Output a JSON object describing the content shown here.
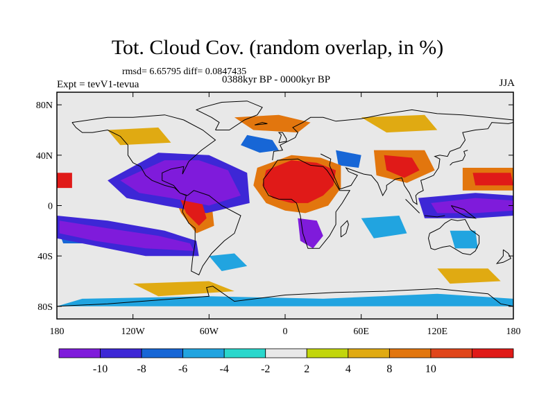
{
  "title": "Tot. Cloud Cov. (random overlap, in %)",
  "stats_line": "rmsd= 6.65795 diff= 0.0847435",
  "experiment": "Expt = tevV1-tevua",
  "period": "0388kyr BP - 0000kyr BP",
  "season": "JJA",
  "map": {
    "lon_range": [
      -180,
      180
    ],
    "lat_range": [
      -90,
      90
    ],
    "lon_ticks": [
      {
        "value": -180,
        "label": "180"
      },
      {
        "value": -120,
        "label": "120W"
      },
      {
        "value": -60,
        "label": "60W"
      },
      {
        "value": 0,
        "label": "0"
      },
      {
        "value": 60,
        "label": "60E"
      },
      {
        "value": 120,
        "label": "120E"
      },
      {
        "value": 180,
        "label": "180"
      }
    ],
    "lat_ticks": [
      {
        "value": 80,
        "label": "80N"
      },
      {
        "value": 40,
        "label": "40N"
      },
      {
        "value": 0,
        "label": "0"
      },
      {
        "value": -40,
        "label": "40S"
      },
      {
        "value": -80,
        "label": "80S"
      }
    ],
    "background_color": "#e8e8e8"
  },
  "colorbar": {
    "colors": [
      "#7f1bdb",
      "#3d27d6",
      "#1766d6",
      "#21a4e0",
      "#2ad7cc",
      "#e8e8e8",
      "#c2d60c",
      "#e0aa12",
      "#e2760e",
      "#e0451a",
      "#e01a18"
    ],
    "labels": [
      {
        "boundary": 1,
        "text": "-10"
      },
      {
        "boundary": 2,
        "text": "-8"
      },
      {
        "boundary": 3,
        "text": "-6"
      },
      {
        "boundary": 4,
        "text": "-4"
      },
      {
        "boundary": 5,
        "text": "-2"
      },
      {
        "boundary": 6,
        "text": "2"
      },
      {
        "boundary": 7,
        "text": "4"
      },
      {
        "boundary": 8,
        "text": "8"
      },
      {
        "boundary": 9,
        "text": "10"
      }
    ]
  },
  "anomaly_regions": [
    {
      "level": 10,
      "pts": [
        [
          -15,
          28
        ],
        [
          5,
          36
        ],
        [
          25,
          34
        ],
        [
          40,
          28
        ],
        [
          38,
          16
        ],
        [
          30,
          8
        ],
        [
          18,
          2
        ],
        [
          5,
          2
        ],
        [
          -10,
          6
        ],
        [
          -18,
          16
        ]
      ]
    },
    {
      "level": 8,
      "pts": [
        [
          -22,
          30
        ],
        [
          5,
          40
        ],
        [
          28,
          38
        ],
        [
          44,
          32
        ],
        [
          44,
          14
        ],
        [
          34,
          0
        ],
        [
          16,
          -6
        ],
        [
          0,
          -4
        ],
        [
          -15,
          2
        ],
        [
          -25,
          16
        ]
      ]
    },
    {
      "level": 10,
      "pts": [
        [
          -84,
          8
        ],
        [
          -74,
          10
        ],
        [
          -66,
          4
        ],
        [
          -62,
          -10
        ],
        [
          -68,
          -16
        ],
        [
          -78,
          -6
        ]
      ]
    },
    {
      "level": 8,
      "pts": [
        [
          -90,
          12
        ],
        [
          -68,
          14
        ],
        [
          -58,
          2
        ],
        [
          -56,
          -16
        ],
        [
          -70,
          -22
        ],
        [
          -82,
          -6
        ]
      ]
    },
    {
      "level": 10,
      "pts": [
        [
          148,
          26
        ],
        [
          178,
          26
        ],
        [
          180,
          16
        ],
        [
          150,
          16
        ]
      ]
    },
    {
      "level": 8,
      "pts": [
        [
          140,
          30
        ],
        [
          180,
          30
        ],
        [
          180,
          12
        ],
        [
          140,
          12
        ]
      ]
    },
    {
      "level": 10,
      "pts": [
        [
          -180,
          26
        ],
        [
          -168,
          26
        ],
        [
          -168,
          14
        ],
        [
          -180,
          14
        ]
      ]
    },
    {
      "level": 10,
      "pts": [
        [
          78,
          40
        ],
        [
          100,
          38
        ],
        [
          106,
          28
        ],
        [
          94,
          22
        ],
        [
          80,
          28
        ]
      ]
    },
    {
      "level": 8,
      "pts": [
        [
          70,
          44
        ],
        [
          110,
          44
        ],
        [
          118,
          28
        ],
        [
          96,
          18
        ],
        [
          72,
          24
        ]
      ]
    },
    {
      "level": 8,
      "pts": [
        [
          -40,
          70
        ],
        [
          -5,
          72
        ],
        [
          20,
          66
        ],
        [
          10,
          58
        ],
        [
          -25,
          60
        ]
      ]
    },
    {
      "level": -10,
      "pts": [
        [
          -130,
          20
        ],
        [
          -95,
          36
        ],
        [
          -68,
          36
        ],
        [
          -45,
          28
        ],
        [
          -35,
          8
        ],
        [
          -60,
          0
        ],
        [
          -90,
          6
        ],
        [
          -115,
          10
        ]
      ]
    },
    {
      "level": -8,
      "pts": [
        [
          -140,
          20
        ],
        [
          -100,
          42
        ],
        [
          -60,
          40
        ],
        [
          -30,
          26
        ],
        [
          -28,
          2
        ],
        [
          -62,
          -6
        ],
        [
          -95,
          0
        ],
        [
          -125,
          6
        ]
      ]
    },
    {
      "level": -10,
      "pts": [
        [
          -178,
          -12
        ],
        [
          -140,
          -18
        ],
        [
          -100,
          -24
        ],
        [
          -75,
          -30
        ],
        [
          -72,
          -36
        ],
        [
          -110,
          -34
        ],
        [
          -150,
          -28
        ],
        [
          -178,
          -22
        ]
      ]
    },
    {
      "level": -8,
      "pts": [
        [
          -180,
          -8
        ],
        [
          -140,
          -12
        ],
        [
          -95,
          -20
        ],
        [
          -70,
          -28
        ],
        [
          -68,
          -40
        ],
        [
          -110,
          -40
        ],
        [
          -150,
          -32
        ],
        [
          -180,
          -26
        ]
      ]
    },
    {
      "level": -10,
      "pts": [
        [
          10,
          -10
        ],
        [
          25,
          -12
        ],
        [
          30,
          -24
        ],
        [
          22,
          -34
        ],
        [
          12,
          -28
        ]
      ]
    },
    {
      "level": -10,
      "pts": [
        [
          115,
          2
        ],
        [
          150,
          6
        ],
        [
          180,
          4
        ],
        [
          180,
          -4
        ],
        [
          150,
          -6
        ],
        [
          120,
          -6
        ]
      ]
    },
    {
      "level": -8,
      "pts": [
        [
          105,
          6
        ],
        [
          150,
          10
        ],
        [
          180,
          8
        ],
        [
          180,
          -8
        ],
        [
          150,
          -10
        ],
        [
          110,
          -10
        ]
      ]
    },
    {
      "level": -6,
      "pts": [
        [
          -30,
          56
        ],
        [
          -10,
          52
        ],
        [
          -5,
          44
        ],
        [
          -20,
          42
        ],
        [
          -35,
          48
        ]
      ]
    },
    {
      "level": -6,
      "pts": [
        [
          40,
          44
        ],
        [
          60,
          40
        ],
        [
          58,
          30
        ],
        [
          42,
          32
        ]
      ]
    },
    {
      "level": -4,
      "pts": [
        [
          -60,
          -40
        ],
        [
          -40,
          -38
        ],
        [
          -30,
          -48
        ],
        [
          -50,
          -52
        ]
      ]
    },
    {
      "level": -4,
      "pts": [
        [
          130,
          -20
        ],
        [
          150,
          -20
        ],
        [
          152,
          -34
        ],
        [
          134,
          -34
        ]
      ]
    },
    {
      "level": -4,
      "pts": [
        [
          60,
          -10
        ],
        [
          90,
          -8
        ],
        [
          96,
          -22
        ],
        [
          70,
          -26
        ]
      ]
    },
    {
      "level": -4,
      "pts": [
        [
          -160,
          -74
        ],
        [
          -60,
          -72
        ],
        [
          30,
          -74
        ],
        [
          120,
          -70
        ],
        [
          180,
          -74
        ],
        [
          180,
          -80
        ],
        [
          -180,
          -80
        ]
      ]
    },
    {
      "level": 4,
      "pts": [
        [
          -120,
          -62
        ],
        [
          -60,
          -60
        ],
        [
          -40,
          -68
        ],
        [
          -100,
          -72
        ]
      ]
    },
    {
      "level": 4,
      "pts": [
        [
          120,
          -50
        ],
        [
          160,
          -50
        ],
        [
          170,
          -60
        ],
        [
          130,
          -62
        ]
      ]
    },
    {
      "level": 4,
      "pts": [
        [
          -140,
          60
        ],
        [
          -100,
          62
        ],
        [
          -90,
          50
        ],
        [
          -130,
          48
        ]
      ]
    },
    {
      "level": 4,
      "pts": [
        [
          60,
          70
        ],
        [
          110,
          72
        ],
        [
          120,
          60
        ],
        [
          80,
          58
        ]
      ]
    },
    {
      "level": -6,
      "pts": [
        [
          -180,
          -16
        ],
        [
          -150,
          -20
        ],
        [
          -140,
          -30
        ],
        [
          -175,
          -30
        ]
      ]
    }
  ]
}
